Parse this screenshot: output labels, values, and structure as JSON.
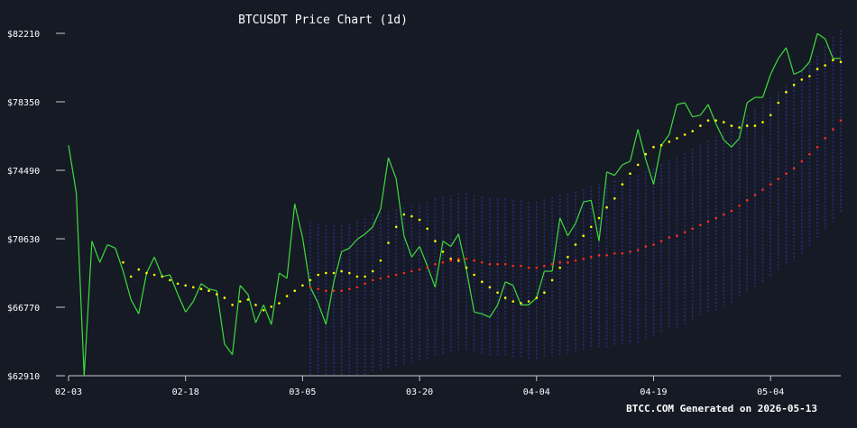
{
  "colors": {
    "background": "#161a25",
    "price_line": "#3ddc3d",
    "ma_short": "#ffff00",
    "ma_long": "#ff2a2a",
    "band_stripes": "#2a2f8f",
    "text": "#ffffff",
    "axis": "#c8c8c8"
  },
  "footer": "BTCC.COM Generated on 2026-05-13",
  "chart_data": {
    "type": "line",
    "title": "BTCUSDT Price Chart (1d)",
    "xlabel": "",
    "ylabel": "",
    "x_ticks": [
      "02-03",
      "02-18",
      "03-05",
      "03-20",
      "04-04",
      "04-19",
      "05-04"
    ],
    "y_ticks": [
      "$62910",
      "$66770",
      "$70630",
      "$74490",
      "$78350",
      "$82210"
    ],
    "ylim": [
      62910,
      82210
    ],
    "x_start": "2026-02-03",
    "grid": false,
    "legend": "none",
    "series": [
      {
        "style": "line",
        "color": "#3ddc3d",
        "values": [
          75900,
          73200,
          62900,
          70500,
          69300,
          70300,
          70100,
          68800,
          67200,
          66400,
          68700,
          69600,
          68500,
          68600,
          67500,
          66500,
          67100,
          68100,
          67800,
          67700,
          64700,
          64100,
          68000,
          67500,
          65900,
          66900,
          65800,
          68700,
          68400,
          72600,
          70700,
          67900,
          67000,
          65800,
          68200,
          69900,
          70100,
          70600,
          70900,
          71300,
          72300,
          75200,
          74000,
          70800,
          69600,
          70200,
          69100,
          67900,
          70500,
          70200,
          70900,
          68900,
          66500,
          66400,
          66200,
          66900,
          68200,
          68000,
          66900,
          66900,
          67300,
          68800,
          68800,
          71800,
          70800,
          71500,
          72700,
          72800,
          70500,
          74400,
          74200,
          74800,
          75000,
          76800,
          75100,
          73700,
          75900,
          76500,
          78200,
          78300,
          77500,
          77600,
          78200,
          77100,
          76200,
          75800,
          76300,
          78300,
          78600,
          78600,
          79900,
          80800,
          81400,
          79900,
          80100,
          80600,
          82200,
          81900,
          80800,
          80800
        ]
      },
      {
        "style": "dotted",
        "color": "#ffff00",
        "values": [
          null,
          null,
          null,
          null,
          null,
          null,
          null,
          69300,
          68500,
          68900,
          68700,
          68600,
          68500,
          68300,
          68100,
          68000,
          67900,
          67800,
          67700,
          67500,
          67300,
          66900,
          67100,
          67200,
          66900,
          66600,
          66800,
          67000,
          67400,
          67700,
          68000,
          68300,
          68600,
          68700,
          68700,
          68800,
          68700,
          68500,
          68500,
          68800,
          69400,
          70400,
          71300,
          72000,
          71900,
          71700,
          71200,
          70500,
          69900,
          69500,
          69400,
          69000,
          68600,
          68200,
          67900,
          67600,
          67300,
          67100,
          67000,
          67100,
          67300,
          67600,
          68300,
          69000,
          69600,
          70300,
          70800,
          71300,
          71800,
          72400,
          72900,
          73700,
          74300,
          74800,
          75400,
          75800,
          75900,
          76100,
          76300,
          76500,
          76700,
          77000,
          77300,
          77300,
          77200,
          77000,
          76900,
          77000,
          77000,
          77200,
          77600,
          78300,
          78900,
          79300,
          79600,
          79800,
          80200,
          80400,
          80700,
          80600
        ]
      },
      {
        "style": "dotted",
        "color": "#ff2a2a",
        "values": [
          null,
          null,
          null,
          null,
          null,
          null,
          null,
          null,
          null,
          null,
          null,
          null,
          null,
          null,
          null,
          null,
          null,
          null,
          null,
          null,
          null,
          null,
          null,
          null,
          null,
          null,
          null,
          null,
          null,
          null,
          null,
          67900,
          67800,
          67700,
          67700,
          67700,
          67800,
          67900,
          68100,
          68300,
          68400,
          68500,
          68600,
          68700,
          68800,
          68900,
          69000,
          69200,
          69300,
          69400,
          69500,
          69500,
          69400,
          69300,
          69200,
          69200,
          69200,
          69100,
          69100,
          69000,
          69000,
          69100,
          69200,
          69300,
          69300,
          69400,
          69500,
          69600,
          69700,
          69700,
          69800,
          69800,
          69900,
          70000,
          70200,
          70300,
          70500,
          70700,
          70800,
          71000,
          71200,
          71400,
          71600,
          71800,
          72000,
          72200,
          72500,
          72800,
          73100,
          73400,
          73700,
          74000,
          74300,
          74600,
          75000,
          75400,
          75800,
          76300,
          76800,
          77300
        ]
      }
    ]
  }
}
